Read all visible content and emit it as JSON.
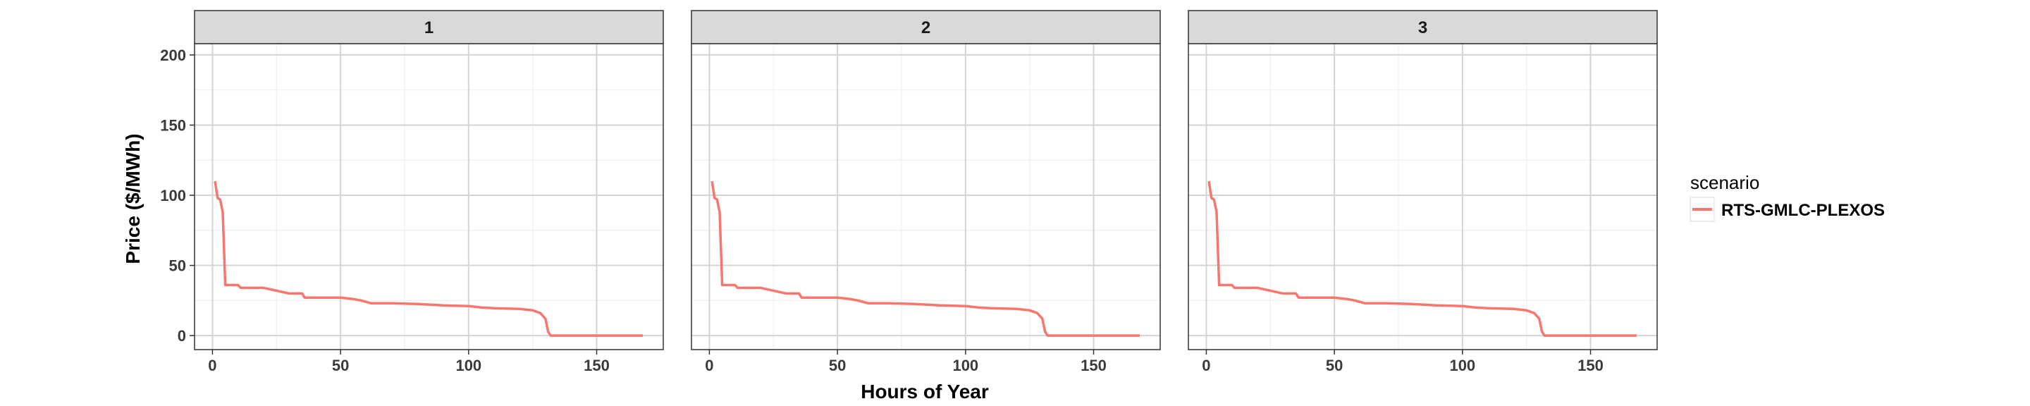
{
  "chart_data": {
    "type": "line",
    "xlabel": "Hours of Year",
    "ylabel": "Price ($/MWh)",
    "xlim": [
      -7,
      176
    ],
    "ylim": [
      -10,
      208
    ],
    "x_ticks": [
      0,
      50,
      100,
      150
    ],
    "y_ticks": [
      0,
      50,
      100,
      150,
      200
    ],
    "x_tick_labels": [
      "0",
      "50",
      "100",
      "150"
    ],
    "y_tick_labels": [
      "0",
      "50",
      "100",
      "150",
      "200"
    ],
    "grid": true,
    "legend": {
      "title": "scenario",
      "placement": "right",
      "entries": [
        {
          "name": "RTS-GMLC-PLEXOS",
          "color": "#F8766D"
        }
      ]
    },
    "panels": [
      {
        "label": "1",
        "series": [
          {
            "name": "RTS-GMLC-PLEXOS",
            "color": "#F8766D",
            "x": [
              1,
              2,
              3,
              4,
              5,
              10,
              11,
              20,
              25,
              30,
              35,
              36,
              50,
              55,
              58,
              62,
              70,
              80,
              90,
              100,
              105,
              110,
              120,
              125,
              128,
              130,
              131,
              132,
              150,
              168
            ],
            "y": [
              110,
              98,
              97,
              88,
              36,
              36,
              34,
              34,
              32,
              30,
              30,
              27,
              27,
              26,
              25,
              23,
              23,
              22.5,
              21.5,
              21,
              20,
              19.5,
              19,
              18,
              16,
              12,
              3,
              0,
              0,
              0
            ]
          }
        ]
      },
      {
        "label": "2",
        "series": [
          {
            "name": "RTS-GMLC-PLEXOS",
            "color": "#F8766D",
            "x": [
              1,
              2,
              3,
              4,
              5,
              10,
              11,
              20,
              25,
              30,
              35,
              36,
              50,
              55,
              58,
              62,
              70,
              80,
              90,
              100,
              105,
              110,
              120,
              125,
              128,
              130,
              131,
              132,
              150,
              168
            ],
            "y": [
              110,
              98,
              97,
              88,
              36,
              36,
              34,
              34,
              32,
              30,
              30,
              27,
              27,
              26,
              25,
              23,
              23,
              22.5,
              21.5,
              21,
              20,
              19.5,
              19,
              18,
              16,
              12,
              3,
              0,
              0,
              0
            ]
          }
        ]
      },
      {
        "label": "3",
        "series": [
          {
            "name": "RTS-GMLC-PLEXOS",
            "color": "#F8766D",
            "x": [
              1,
              2,
              3,
              4,
              5,
              10,
              11,
              20,
              25,
              30,
              35,
              36,
              50,
              55,
              58,
              62,
              70,
              80,
              90,
              100,
              105,
              110,
              120,
              125,
              128,
              130,
              131,
              132,
              150,
              168
            ],
            "y": [
              110,
              98,
              97,
              88,
              36,
              36,
              34,
              34,
              32,
              30,
              30,
              27,
              27,
              26,
              25,
              23,
              23,
              22.5,
              21.5,
              21,
              20,
              19.5,
              19,
              18,
              16,
              12,
              3,
              0,
              0,
              0
            ]
          }
        ]
      }
    ]
  }
}
